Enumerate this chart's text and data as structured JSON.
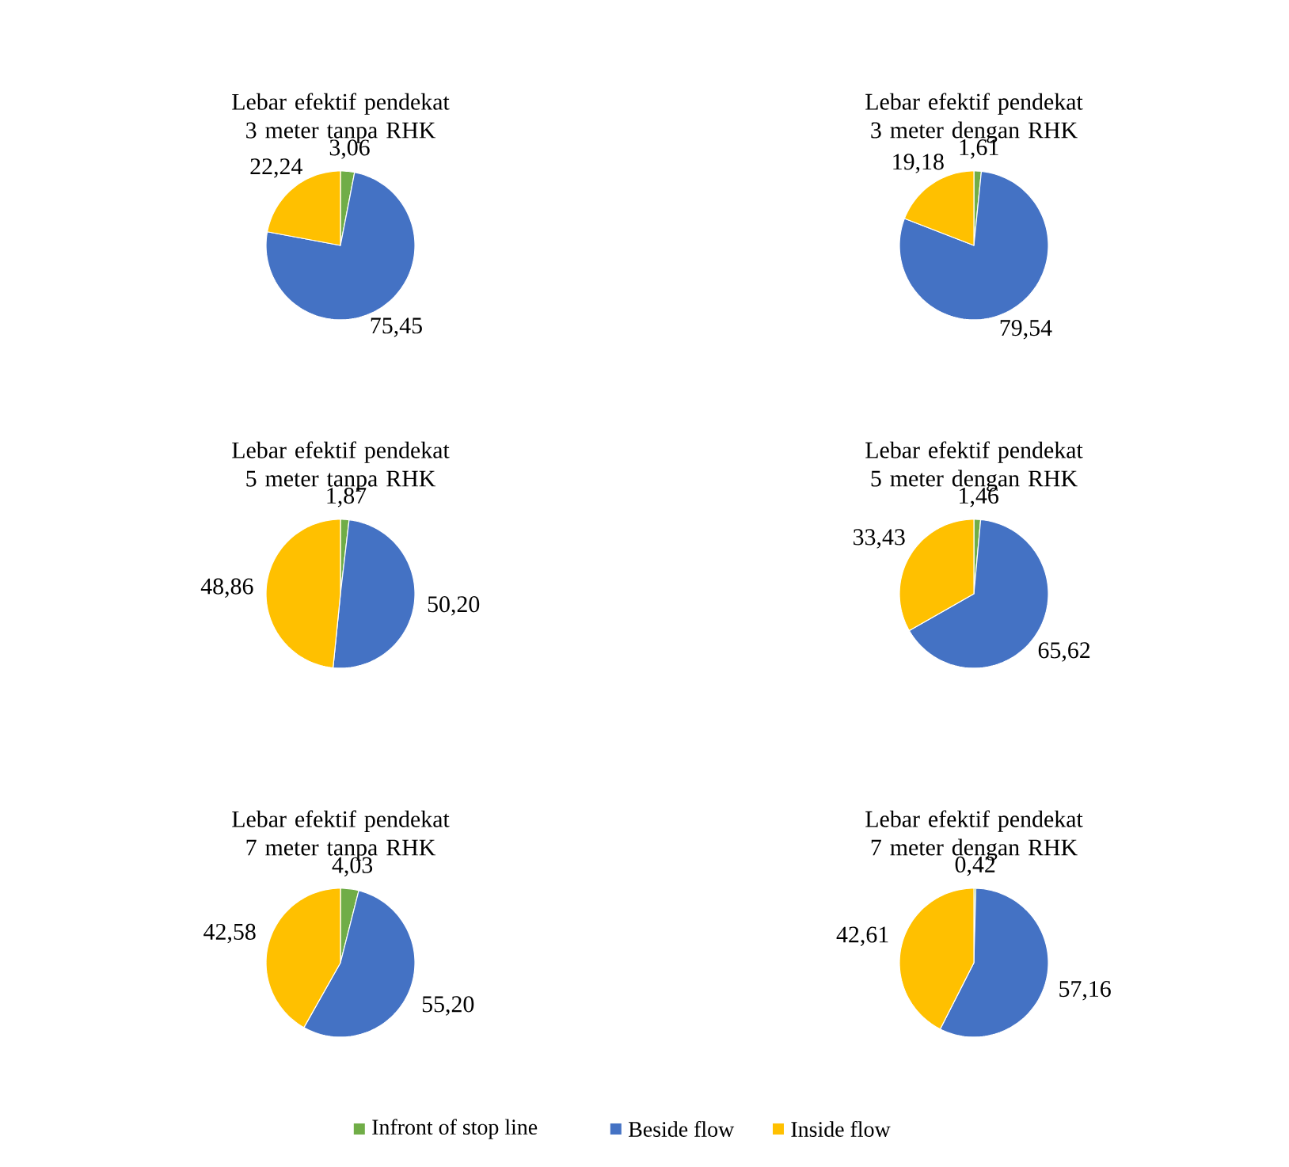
{
  "chart_data": [
    {
      "type": "pie",
      "title": "Lebar efektif pendekat 3 meter tanpa RHK",
      "categories": [
        "Infront of stop line",
        "Beside flow",
        "Inside flow"
      ],
      "values": [
        3.06,
        75.45,
        22.24
      ],
      "value_labels": [
        "3,06",
        "75,45",
        "22,24"
      ],
      "colors": [
        "#70ad47",
        "#4472c4",
        "#ffc000"
      ],
      "legend": "bottom"
    },
    {
      "type": "pie",
      "title": "Lebar efektif pendekat 3 meter dengan RHK",
      "categories": [
        null,
        null,
        null
      ],
      "values": [
        1.61,
        79.54,
        19.18
      ],
      "value_labels": [
        "1,61",
        "79,54",
        "19,18"
      ],
      "colors": [
        "#70ad47",
        "#4472c4",
        "#ffc000"
      ]
    },
    {
      "type": "pie",
      "title": "Lebar efektif pendekat 5 meter tanpa RHK",
      "categories": [
        null,
        null,
        null
      ],
      "values": [
        1.87,
        50.2,
        48.86
      ],
      "value_labels": [
        "1,87",
        "50,20",
        "48,86"
      ],
      "colors": [
        "#70ad47",
        "#4472c4",
        "#ffc000"
      ]
    },
    {
      "type": "pie",
      "title": "Lebar efektif pendekat 5 meter dengan RHK",
      "categories": [
        null,
        null,
        null
      ],
      "values": [
        1.46,
        65.62,
        33.43
      ],
      "value_labels": [
        "1,46",
        "65,62",
        "33,43"
      ],
      "colors": [
        "#70ad47",
        "#4472c4",
        "#ffc000"
      ]
    },
    {
      "type": "pie",
      "title": "Lebar efektif pendekat 7 meter tanpa RHK",
      "categories": [
        null,
        null,
        null
      ],
      "values": [
        4.03,
        55.2,
        42.58
      ],
      "value_labels": [
        "4,03",
        "55,20",
        "42,58"
      ],
      "colors": [
        "#70ad47",
        "#4472c4",
        "#ffc000"
      ]
    },
    {
      "type": "pie",
      "title": "Lebar efektif pendekat 7 meter dengan RHK",
      "categories": [
        null,
        null,
        null
      ],
      "values": [
        0.42,
        57.16,
        42.61
      ],
      "value_labels": [
        "0,42",
        "57,16",
        "42,61"
      ],
      "colors": [
        "#70ad47",
        "#4472c4",
        "#ffc000"
      ]
    }
  ]
}
